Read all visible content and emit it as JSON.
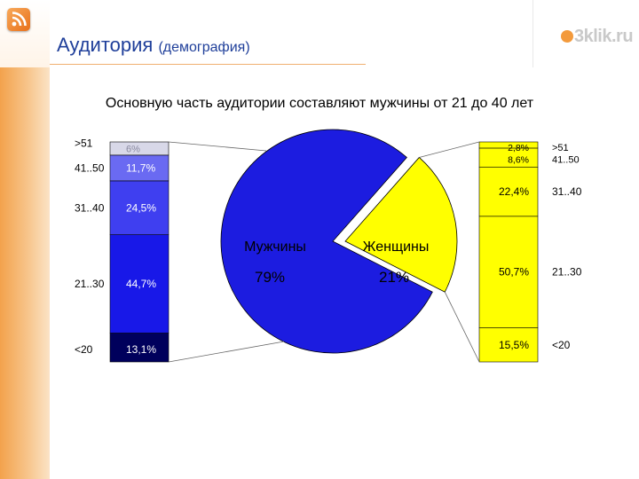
{
  "header": {
    "title": "Аудитория",
    "title_note": "(демография)",
    "logo_text": "3klik.ru",
    "rss_icon": "rss-icon",
    "accent_color": "#f39a3c",
    "title_color": "#1f3f9a"
  },
  "chart_data": {
    "type": "pie",
    "title": "Основную часть аудитории составляют мужчины от 21 до 40 лет",
    "pie": {
      "slices": [
        {
          "name": "Мужчины",
          "value": 79,
          "label": "79%",
          "color": "#1c1ce0"
        },
        {
          "name": "Женщины",
          "value": 21,
          "label": "21%",
          "color": "#ffff00"
        }
      ]
    },
    "breakdowns": [
      {
        "group": "Мужчины",
        "segments": [
          {
            "age": "<20",
            "value": 13.1,
            "label": "13,1%",
            "color": "#00005c"
          },
          {
            "age": "21..30",
            "value": 44.7,
            "label": "44,7%",
            "color": "#1818e8"
          },
          {
            "age": "31..40",
            "value": 24.5,
            "label": "24,5%",
            "color": "#3f3ff0"
          },
          {
            "age": "41..50",
            "value": 11.7,
            "label": "11,7%",
            "color": "#6a6af2"
          },
          {
            "age": ">51",
            "value": 6,
            "label": "6%",
            "color": "#d8d8e8"
          }
        ]
      },
      {
        "group": "Женщины",
        "segments": [
          {
            "age": "<20",
            "value": 15.5,
            "label": "15,5%",
            "color": "#ffff00"
          },
          {
            "age": "21..30",
            "value": 50.7,
            "label": "50,7%",
            "color": "#ffff00"
          },
          {
            "age": "31..40",
            "value": 22.4,
            "label": "22,4%",
            "color": "#ffff00"
          },
          {
            "age": "41..50",
            "value": 8.6,
            "label": "8,6%",
            "color": "#ffff00"
          },
          {
            "age": ">51",
            "value": 2.8,
            "label": "2,8%",
            "color": "#ffff00"
          }
        ]
      }
    ]
  }
}
